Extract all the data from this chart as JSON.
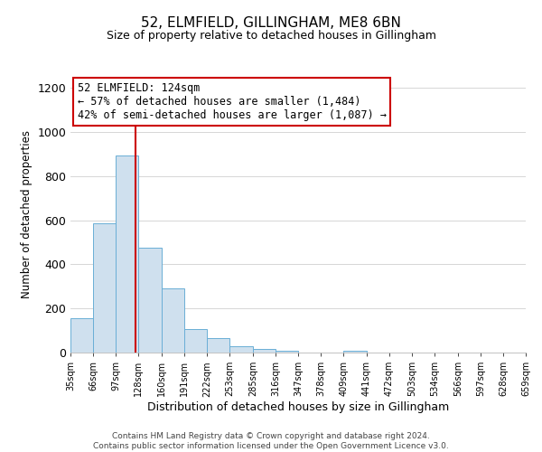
{
  "title": "52, ELMFIELD, GILLINGHAM, ME8 6BN",
  "subtitle": "Size of property relative to detached houses in Gillingham",
  "xlabel": "Distribution of detached houses by size in Gillingham",
  "ylabel": "Number of detached properties",
  "footer_line1": "Contains HM Land Registry data © Crown copyright and database right 2024.",
  "footer_line2": "Contains public sector information licensed under the Open Government Licence v3.0.",
  "bin_labels": [
    "35sqm",
    "66sqm",
    "97sqm",
    "128sqm",
    "160sqm",
    "191sqm",
    "222sqm",
    "253sqm",
    "285sqm",
    "316sqm",
    "347sqm",
    "378sqm",
    "409sqm",
    "441sqm",
    "472sqm",
    "503sqm",
    "534sqm",
    "566sqm",
    "597sqm",
    "628sqm",
    "659sqm"
  ],
  "bin_edges": [
    35,
    66,
    97,
    128,
    160,
    191,
    222,
    253,
    285,
    316,
    347,
    378,
    409,
    441,
    472,
    503,
    534,
    566,
    597,
    628,
    659
  ],
  "bar_values": [
    155,
    585,
    895,
    475,
    290,
    105,
    65,
    28,
    18,
    10,
    0,
    0,
    8,
    0,
    0,
    0,
    0,
    0,
    0,
    0
  ],
  "bar_color": "#cfe0ee",
  "bar_edge_color": "#6aaed6",
  "vline_x": 124,
  "vline_color": "#cc0000",
  "ylim": [
    0,
    1250
  ],
  "yticks": [
    0,
    200,
    400,
    600,
    800,
    1000,
    1200
  ],
  "annotation_title": "52 ELMFIELD: 124sqm",
  "annotation_line2": "← 57% of detached houses are smaller (1,484)",
  "annotation_line3": "42% of semi-detached houses are larger (1,087) →",
  "annotation_box_color": "#ffffff",
  "annotation_box_edge": "#cc0000",
  "background_color": "#ffffff",
  "grid_color": "#d0d0d0"
}
